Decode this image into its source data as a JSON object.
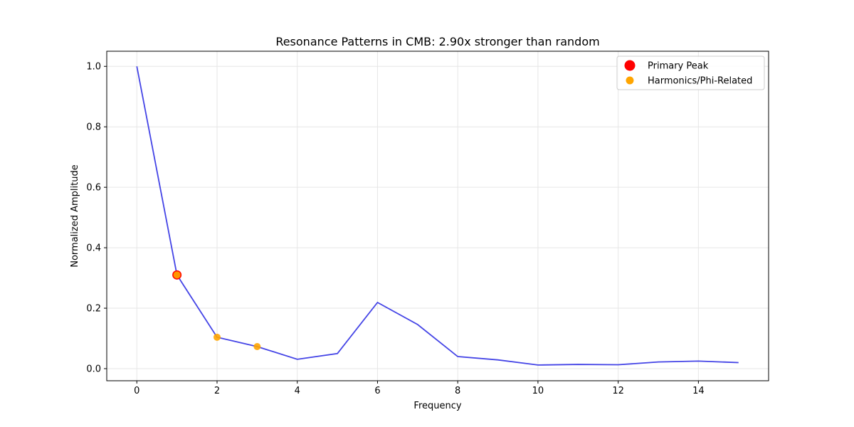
{
  "chart_data": {
    "type": "line",
    "title": "Resonance Patterns in CMB: 2.90x stronger than random",
    "xlabel": "Frequency",
    "ylabel": "Normalized Amplitude",
    "xlim": [
      -0.75,
      15.75
    ],
    "ylim": [
      -0.04,
      1.05
    ],
    "xticks": [
      0,
      2,
      4,
      6,
      8,
      10,
      12,
      14
    ],
    "yticks": [
      0.0,
      0.2,
      0.4,
      0.6,
      0.8,
      1.0
    ],
    "grid": true,
    "legend_position": "top-right",
    "series": [
      {
        "x": [
          0,
          1,
          2,
          3,
          4,
          5,
          6,
          7,
          8,
          9,
          10,
          11,
          12,
          13,
          14,
          15
        ],
        "values": [
          1.0,
          0.31,
          0.104,
          0.073,
          0.031,
          0.05,
          0.219,
          0.146,
          0.04,
          0.029,
          0.012,
          0.014,
          0.013,
          0.022,
          0.025,
          0.02
        ],
        "color": "#4444e6"
      }
    ],
    "markers": [
      {
        "name": "Primary Peak",
        "x": [
          1
        ],
        "y": [
          0.31
        ],
        "color": "#ff0000"
      },
      {
        "name": "Harmonics/Phi-Related",
        "x": [
          2,
          3
        ],
        "y": [
          0.104,
          0.073
        ],
        "color": "#ffa500"
      }
    ]
  }
}
